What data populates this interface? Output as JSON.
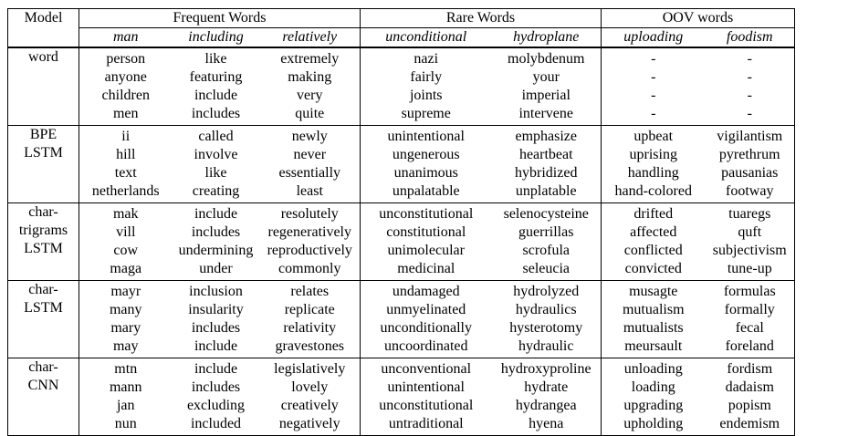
{
  "header": {
    "model": "Model",
    "groups": [
      "Frequent Words",
      "Rare Words",
      "OOV words"
    ],
    "words": [
      "man",
      "including",
      "relatively",
      "unconditional",
      "hydroplane",
      "uploading",
      "foodism"
    ]
  },
  "rows": [
    {
      "model": [
        "word"
      ],
      "cols": [
        [
          "person",
          "anyone",
          "children",
          "men"
        ],
        [
          "like",
          "featuring",
          "include",
          "includes"
        ],
        [
          "extremely",
          "making",
          "very",
          "quite"
        ],
        [
          "nazi",
          "fairly",
          "joints",
          "supreme"
        ],
        [
          "molybdenum",
          "your",
          "imperial",
          "intervene"
        ],
        [
          "-",
          "-",
          "-",
          "-"
        ],
        [
          "-",
          "-",
          "-",
          "-"
        ]
      ]
    },
    {
      "model": [
        "BPE",
        "LSTM"
      ],
      "cols": [
        [
          "ii",
          "hill",
          "text",
          "netherlands"
        ],
        [
          "called",
          "involve",
          "like",
          "creating"
        ],
        [
          "newly",
          "never",
          "essentially",
          "least"
        ],
        [
          "unintentional",
          "ungenerous",
          "unanimous",
          "unpalatable"
        ],
        [
          "emphasize",
          "heartbeat",
          "hybridized",
          "unplatable"
        ],
        [
          "upbeat",
          "uprising",
          "handling",
          "hand-colored"
        ],
        [
          "vigilantism",
          "pyrethrum",
          "pausanias",
          "footway"
        ]
      ]
    },
    {
      "model": [
        "char-",
        "trigrams",
        "LSTM"
      ],
      "cols": [
        [
          "mak",
          "vill",
          "cow",
          "maga"
        ],
        [
          "include",
          "includes",
          "undermining",
          "under"
        ],
        [
          "resolutely",
          "regeneratively",
          "reproductively",
          "commonly"
        ],
        [
          "unconstitutional",
          "constitutional",
          "unimolecular",
          "medicinal"
        ],
        [
          "selenocysteine",
          "guerrillas",
          "scrofula",
          "seleucia"
        ],
        [
          "drifted",
          "affected",
          "conflicted",
          "convicted"
        ],
        [
          "tuaregs",
          "quft",
          "subjectivism",
          "tune-up"
        ]
      ]
    },
    {
      "model": [
        "char-",
        "LSTM"
      ],
      "cols": [
        [
          "mayr",
          "many",
          "mary",
          "may"
        ],
        [
          "inclusion",
          "insularity",
          "includes",
          "include"
        ],
        [
          "relates",
          "replicate",
          "relativity",
          "gravestones"
        ],
        [
          "undamaged",
          "unmyelinated",
          "unconditionally",
          "uncoordinated"
        ],
        [
          "hydrolyzed",
          "hydraulics",
          "hysterotomy",
          "hydraulic"
        ],
        [
          "musagte",
          "mutualism",
          "mutualists",
          "meursault"
        ],
        [
          "formulas",
          "formally",
          "fecal",
          "foreland"
        ]
      ]
    },
    {
      "model": [
        "char-",
        "CNN"
      ],
      "cols": [
        [
          "mtn",
          "mann",
          "jan",
          "nun"
        ],
        [
          "include",
          "includes",
          "excluding",
          "included"
        ],
        [
          "legislatively",
          "lovely",
          "creatively",
          "negatively"
        ],
        [
          "unconventional",
          "unintentional",
          "unconstitutional",
          "untraditional"
        ],
        [
          "hydroxyproline",
          "hydrate",
          "hydrangea",
          "hyena"
        ],
        [
          "unloading",
          "loading",
          "upgrading",
          "upholding"
        ],
        [
          "fordism",
          "dadaism",
          "popism",
          "endemism"
        ]
      ]
    }
  ]
}
